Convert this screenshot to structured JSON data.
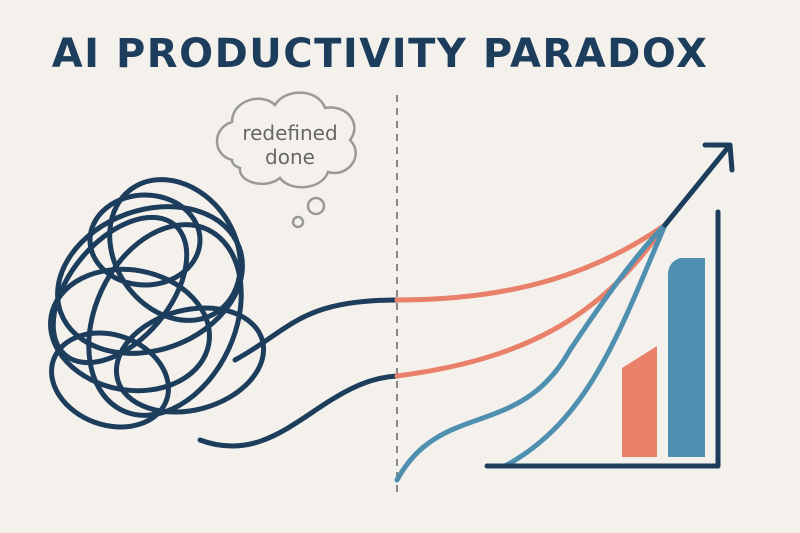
{
  "title": "AI PRODUCTIVITY PARADOX",
  "thought_bubble": {
    "lines": [
      "redefined",
      "done"
    ]
  }
}
